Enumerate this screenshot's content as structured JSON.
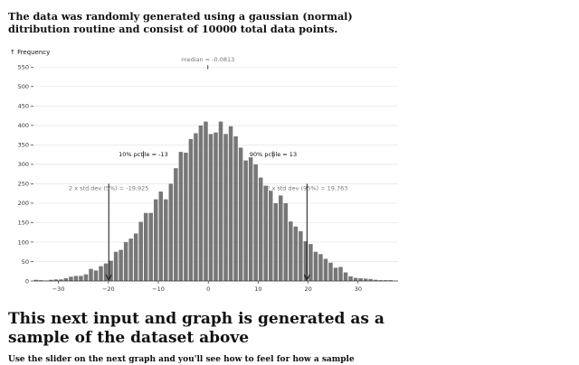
{
  "intro_text": "The data was randomly generated using a gaussian (normal) ditribution routine and consist of 10000 total data points.",
  "section_title": "This next input and graph is generated as a sample of the dataset above",
  "partial_text": "Use the slider on the next graph and you'll see how to feel for how a sample",
  "chart_data": {
    "type": "bar",
    "ylabel": "↑ Frequency",
    "xlim": [
      -35,
      38
    ],
    "ylim": [
      0,
      560
    ],
    "x_ticks": [
      -30,
      -20,
      -10,
      0,
      10,
      20,
      30
    ],
    "y_ticks": [
      0,
      50,
      100,
      150,
      200,
      250,
      300,
      350,
      400,
      450,
      500,
      550
    ],
    "grid": true,
    "bin_width": 1,
    "bins": [
      {
        "x0": -35,
        "count": 3
      },
      {
        "x0": -34,
        "count": 2
      },
      {
        "x0": -33,
        "count": 1
      },
      {
        "x0": -32,
        "count": 3
      },
      {
        "x0": -31,
        "count": 4
      },
      {
        "x0": -30,
        "count": 4
      },
      {
        "x0": -29,
        "count": 7
      },
      {
        "x0": -28,
        "count": 11
      },
      {
        "x0": -27,
        "count": 13
      },
      {
        "x0": -26,
        "count": 13
      },
      {
        "x0": -25,
        "count": 17
      },
      {
        "x0": -24,
        "count": 31
      },
      {
        "x0": -23,
        "count": 27
      },
      {
        "x0": -22,
        "count": 38
      },
      {
        "x0": -21,
        "count": 45
      },
      {
        "x0": -20,
        "count": 52
      },
      {
        "x0": -19,
        "count": 75
      },
      {
        "x0": -18,
        "count": 80
      },
      {
        "x0": -17,
        "count": 100
      },
      {
        "x0": -16,
        "count": 109
      },
      {
        "x0": -15,
        "count": 122
      },
      {
        "x0": -14,
        "count": 152
      },
      {
        "x0": -13,
        "count": 175
      },
      {
        "x0": -12,
        "count": 175
      },
      {
        "x0": -11,
        "count": 210
      },
      {
        "x0": -10,
        "count": 230
      },
      {
        "x0": -9,
        "count": 210
      },
      {
        "x0": -8,
        "count": 250
      },
      {
        "x0": -7,
        "count": 290
      },
      {
        "x0": -6,
        "count": 332
      },
      {
        "x0": -5,
        "count": 330
      },
      {
        "x0": -4,
        "count": 365
      },
      {
        "x0": -3,
        "count": 380
      },
      {
        "x0": -2,
        "count": 400
      },
      {
        "x0": -1,
        "count": 410
      },
      {
        "x0": 0,
        "count": 378
      },
      {
        "x0": 1,
        "count": 382
      },
      {
        "x0": 2,
        "count": 410
      },
      {
        "x0": 3,
        "count": 378
      },
      {
        "x0": 4,
        "count": 398
      },
      {
        "x0": 5,
        "count": 372
      },
      {
        "x0": 6,
        "count": 343
      },
      {
        "x0": 7,
        "count": 310
      },
      {
        "x0": 8,
        "count": 318
      },
      {
        "x0": 9,
        "count": 300
      },
      {
        "x0": 10,
        "count": 266
      },
      {
        "x0": 11,
        "count": 245
      },
      {
        "x0": 12,
        "count": 232
      },
      {
        "x0": 13,
        "count": 200
      },
      {
        "x0": 14,
        "count": 220
      },
      {
        "x0": 15,
        "count": 200
      },
      {
        "x0": 16,
        "count": 153
      },
      {
        "x0": 17,
        "count": 140
      },
      {
        "x0": 18,
        "count": 128
      },
      {
        "x0": 19,
        "count": 102
      },
      {
        "x0": 20,
        "count": 95
      },
      {
        "x0": 21,
        "count": 75
      },
      {
        "x0": 22,
        "count": 69
      },
      {
        "x0": 23,
        "count": 57
      },
      {
        "x0": 24,
        "count": 47
      },
      {
        "x0": 25,
        "count": 34
      },
      {
        "x0": 26,
        "count": 36
      },
      {
        "x0": 27,
        "count": 22
      },
      {
        "x0": 28,
        "count": 12
      },
      {
        "x0": 29,
        "count": 8
      },
      {
        "x0": 30,
        "count": 7
      },
      {
        "x0": 31,
        "count": 6
      },
      {
        "x0": 32,
        "count": 5
      },
      {
        "x0": 33,
        "count": 3
      },
      {
        "x0": 34,
        "count": 2
      },
      {
        "x0": 35,
        "count": 2
      },
      {
        "x0": 36,
        "count": 2
      }
    ],
    "annotations": [
      {
        "name": "median",
        "label": "median = -0.0813",
        "x": -0.0813,
        "y_top": 555,
        "y_label": 565,
        "color": "#777777",
        "line_y_bottom": 545
      },
      {
        "name": "pctile-10",
        "label": "10% pctile = -13",
        "x": -13,
        "y_label": 325,
        "color": "#111111"
      },
      {
        "name": "pctile-90",
        "label": "90% pctile = 13",
        "x": 13,
        "y_label": 325,
        "color": "#111111"
      },
      {
        "name": "std-low",
        "label": "2 x std dev (5%) = -19.925",
        "x": -19.925,
        "y_label": 238,
        "y_top": 250,
        "color": "#777777",
        "arrow": true
      },
      {
        "name": "std-high",
        "label": "2 x std dev (95%) = 19.763",
        "x": 19.763,
        "y_label": 238,
        "y_top": 250,
        "color": "#777777",
        "arrow": true
      }
    ],
    "bar_color": "#777777",
    "grid_color": "#e6e6e6"
  }
}
